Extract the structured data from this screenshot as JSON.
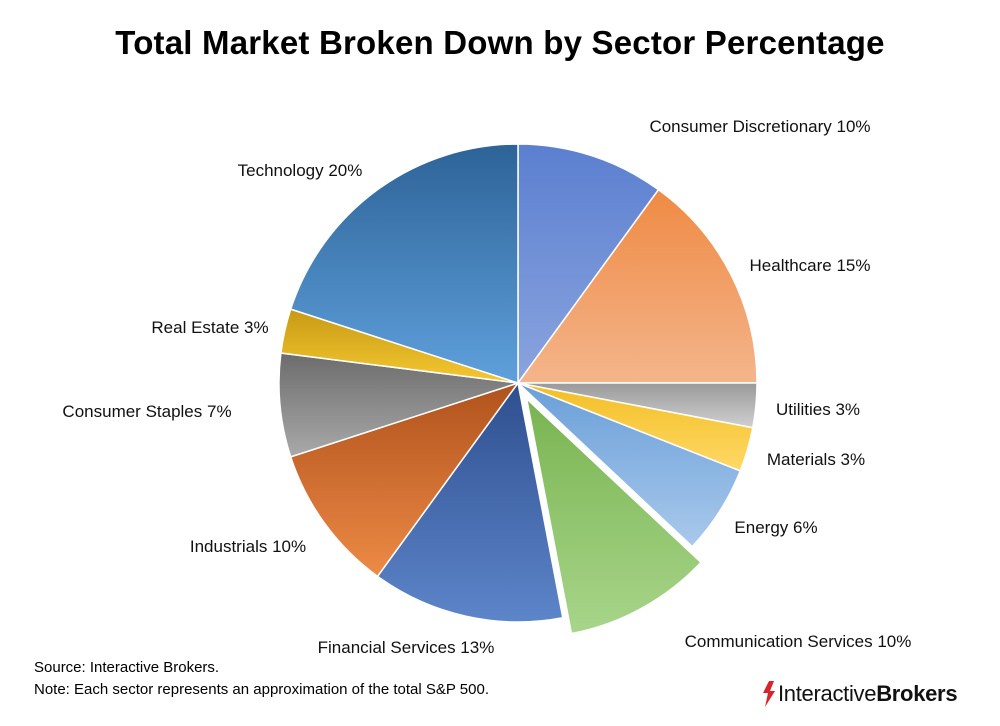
{
  "chart_data": {
    "type": "pie",
    "title": "Total Market Broken Down by Sector Percentage",
    "slices": [
      {
        "label": "Consumer Discretionary",
        "value": 10,
        "display": "Consumer Discretionary 10%",
        "color": "#5b7fd0",
        "color2": "#8aa4de",
        "exploded": false
      },
      {
        "label": "Healthcare",
        "value": 15,
        "display": "Healthcare 15%",
        "color": "#ef8a44",
        "color2": "#f4b58b",
        "exploded": false
      },
      {
        "label": "Utilities",
        "value": 3,
        "display": "Utilities 3%",
        "color": "#9a9a9a",
        "color2": "#d0d0d0",
        "exploded": false
      },
      {
        "label": "Materials",
        "value": 3,
        "display": "Materials 3%",
        "color": "#f3be25",
        "color2": "#ffd966",
        "exploded": false
      },
      {
        "label": "Energy",
        "value": 6,
        "display": "Energy 6%",
        "color": "#6a9fd8",
        "color2": "#a9c9ec",
        "exploded": false
      },
      {
        "label": "Communication Services",
        "value": 10,
        "display": "Communication Services 10%",
        "color": "#79b451",
        "color2": "#a8d58a",
        "exploded": true
      },
      {
        "label": "Financial Services",
        "value": 13,
        "display": "Financial Services 13%",
        "color": "#2e4f8f",
        "color2": "#5d85c9",
        "exploded": false
      },
      {
        "label": "Industrials",
        "value": 10,
        "display": "Industrials 10%",
        "color": "#b0521c",
        "color2": "#ed8a46",
        "exploded": false
      },
      {
        "label": "Consumer Staples",
        "value": 7,
        "display": "Consumer Staples 7%",
        "color": "#6c6c6c",
        "color2": "#a9a9a9",
        "exploded": false
      },
      {
        "label": "Real Estate",
        "value": 3,
        "display": "Real Estate 3%",
        "color": "#c79a14",
        "color2": "#f5c831",
        "exploded": false
      },
      {
        "label": "Technology",
        "value": 20,
        "display": "Technology 20%",
        "color": "#2d6397",
        "color2": "#5fa0dc",
        "exploded": false
      }
    ]
  },
  "source": "Source: Interactive Brokers.",
  "note": "Note: Each sector represents an approximation of the total S&P 500.",
  "brand": {
    "part1": "Interactive",
    "part2": "Brokers",
    "color": "#d7262b"
  }
}
